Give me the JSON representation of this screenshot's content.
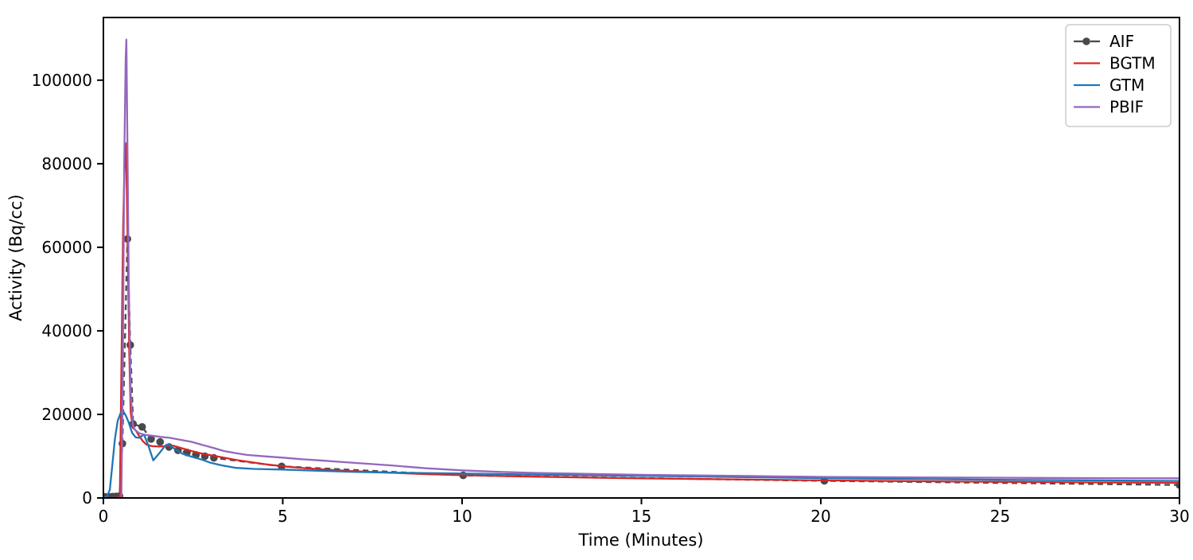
{
  "chart_data": {
    "type": "line",
    "title": "",
    "xlabel": "Time (Minutes)",
    "ylabel": "Activity (Bq/cc)",
    "xlim": [
      0,
      30
    ],
    "ylim": [
      0,
      115000
    ],
    "x_ticks": [
      0,
      5,
      10,
      15,
      20,
      25,
      30
    ],
    "y_ticks": [
      0,
      20000,
      40000,
      60000,
      80000,
      100000
    ],
    "grid": false,
    "legend_position": "upper right",
    "background_color": "#ffffff",
    "spine_color": "#000000",
    "series": [
      {
        "name": "AIF",
        "color": "#4a4a4a",
        "style": "dashed",
        "marker": "circle",
        "points": [
          [
            0.05,
            250
          ],
          [
            0.15,
            280
          ],
          [
            0.25,
            320
          ],
          [
            0.35,
            380
          ],
          [
            0.45,
            460
          ],
          [
            0.53,
            13000
          ],
          [
            0.67,
            62000
          ],
          [
            0.75,
            36600
          ],
          [
            0.83,
            17700
          ],
          [
            1.08,
            17000
          ],
          [
            1.33,
            14100
          ],
          [
            1.58,
            13400
          ],
          [
            1.83,
            12200
          ],
          [
            2.08,
            11400
          ],
          [
            2.33,
            10900
          ],
          [
            2.58,
            10300
          ],
          [
            2.83,
            10000
          ],
          [
            3.08,
            9600
          ],
          [
            4.97,
            7560
          ],
          [
            10.03,
            5410
          ],
          [
            20.1,
            4100
          ],
          [
            30,
            3100
          ]
        ]
      },
      {
        "name": "BGTM",
        "color": "#d62728",
        "style": "solid",
        "marker": "none",
        "points": [
          [
            0,
            0
          ],
          [
            0.4,
            0
          ],
          [
            0.46,
            500
          ],
          [
            0.5,
            30000
          ],
          [
            0.55,
            65000
          ],
          [
            0.6,
            83000
          ],
          [
            0.63,
            84900
          ],
          [
            0.67,
            65000
          ],
          [
            0.72,
            35000
          ],
          [
            0.76,
            20500
          ],
          [
            0.82,
            16800
          ],
          [
            0.9,
            16200
          ],
          [
            1.0,
            14800
          ],
          [
            1.1,
            13600
          ],
          [
            1.2,
            12800
          ],
          [
            1.35,
            12400
          ],
          [
            1.55,
            12300
          ],
          [
            1.75,
            12400
          ],
          [
            1.95,
            12500
          ],
          [
            2.15,
            12000
          ],
          [
            2.45,
            11250
          ],
          [
            2.7,
            10700
          ],
          [
            3.0,
            10200
          ],
          [
            3.35,
            9650
          ],
          [
            3.7,
            9100
          ],
          [
            4.0,
            8700
          ],
          [
            4.5,
            8100
          ],
          [
            5.0,
            7600
          ],
          [
            5.5,
            7200
          ],
          [
            6.0,
            6900
          ],
          [
            7.0,
            6400
          ],
          [
            8.0,
            6050
          ],
          [
            9.0,
            5700
          ],
          [
            10.0,
            5450
          ],
          [
            11.0,
            5250
          ],
          [
            12.0,
            5100
          ],
          [
            13.0,
            4950
          ],
          [
            14.0,
            4820
          ],
          [
            15.0,
            4700
          ],
          [
            16.0,
            4600
          ],
          [
            17.0,
            4500
          ],
          [
            18.0,
            4400
          ],
          [
            19.0,
            4300
          ],
          [
            20.0,
            4200
          ],
          [
            22.0,
            4050
          ],
          [
            24.0,
            3900
          ],
          [
            26.0,
            3800
          ],
          [
            28.0,
            3700
          ],
          [
            30.0,
            3620
          ]
        ]
      },
      {
        "name": "GTM",
        "color": "#1f77b4",
        "style": "solid",
        "marker": "none",
        "points": [
          [
            0,
            100
          ],
          [
            0.1,
            300
          ],
          [
            0.18,
            2000
          ],
          [
            0.25,
            8000
          ],
          [
            0.32,
            14000
          ],
          [
            0.4,
            18500
          ],
          [
            0.48,
            20300
          ],
          [
            0.55,
            20800
          ],
          [
            0.62,
            19800
          ],
          [
            0.7,
            18200
          ],
          [
            0.8,
            15600
          ],
          [
            0.9,
            14500
          ],
          [
            1.0,
            14400
          ],
          [
            1.13,
            15200
          ],
          [
            1.25,
            12600
          ],
          [
            1.39,
            9000
          ],
          [
            1.55,
            10600
          ],
          [
            1.7,
            12300
          ],
          [
            1.81,
            12800
          ],
          [
            2.0,
            11700
          ],
          [
            2.2,
            10600
          ],
          [
            2.45,
            9900
          ],
          [
            2.7,
            9300
          ],
          [
            3.0,
            8400
          ],
          [
            3.3,
            7800
          ],
          [
            3.7,
            7200
          ],
          [
            4.2,
            6950
          ],
          [
            5.0,
            6800
          ],
          [
            6.0,
            6500
          ],
          [
            7.0,
            6250
          ],
          [
            8.0,
            6050
          ],
          [
            10.0,
            5850
          ],
          [
            12.0,
            5600
          ],
          [
            15.0,
            5300
          ],
          [
            20.0,
            4750
          ],
          [
            25.0,
            4350
          ],
          [
            30.0,
            4080
          ]
        ]
      },
      {
        "name": "PBIF",
        "color": "#9467bd",
        "style": "solid",
        "marker": "none",
        "points": [
          [
            0,
            0
          ],
          [
            0.5,
            0
          ],
          [
            0.54,
            30000
          ],
          [
            0.58,
            80000
          ],
          [
            0.62,
            105000
          ],
          [
            0.64,
            109700
          ],
          [
            0.67,
            85000
          ],
          [
            0.71,
            50000
          ],
          [
            0.76,
            25000
          ],
          [
            0.82,
            17500
          ],
          [
            0.88,
            16300
          ],
          [
            1.0,
            15500
          ],
          [
            1.15,
            15100
          ],
          [
            1.35,
            14900
          ],
          [
            1.6,
            14600
          ],
          [
            1.85,
            14400
          ],
          [
            2.1,
            14000
          ],
          [
            2.45,
            13450
          ],
          [
            2.8,
            12600
          ],
          [
            3.1,
            11900
          ],
          [
            3.35,
            11250
          ],
          [
            3.7,
            10700
          ],
          [
            4.0,
            10300
          ],
          [
            4.5,
            9950
          ],
          [
            5.0,
            9650
          ],
          [
            5.5,
            9300
          ],
          [
            6.0,
            9000
          ],
          [
            7.0,
            8400
          ],
          [
            8.0,
            7800
          ],
          [
            9.0,
            7100
          ],
          [
            10.0,
            6600
          ],
          [
            11.0,
            6250
          ],
          [
            12.0,
            6000
          ],
          [
            13.0,
            5850
          ],
          [
            14.0,
            5700
          ],
          [
            15.0,
            5550
          ],
          [
            16.0,
            5450
          ],
          [
            17.0,
            5350
          ],
          [
            18.0,
            5250
          ],
          [
            19.0,
            5150
          ],
          [
            20.0,
            5050
          ],
          [
            22.0,
            4950
          ],
          [
            24.0,
            4870
          ],
          [
            26.0,
            4800
          ],
          [
            28.0,
            4750
          ],
          [
            30.0,
            4710
          ]
        ]
      }
    ]
  }
}
